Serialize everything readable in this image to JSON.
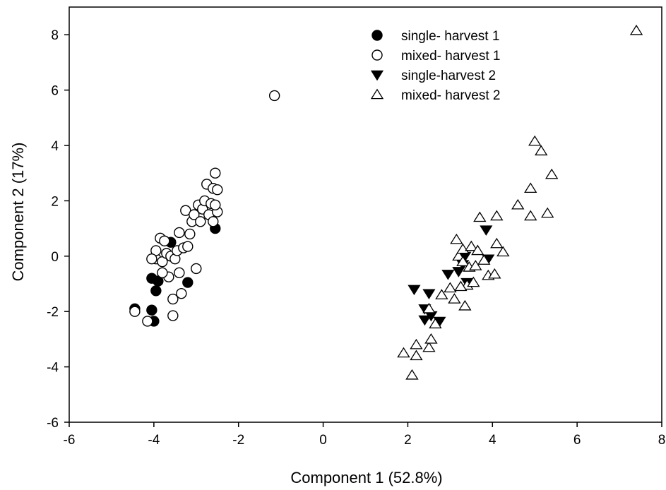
{
  "chart_data": {
    "type": "scatter",
    "title": "",
    "xlabel": "Component 1 (52.8%)",
    "ylabel": "Component 2 (17%)",
    "xlim": [
      -6,
      8
    ],
    "ylim": [
      -6,
      9
    ],
    "xticks": [
      -6,
      -4,
      -2,
      0,
      2,
      4,
      6,
      8
    ],
    "yticks": [
      -6,
      -4,
      -2,
      0,
      2,
      4,
      6,
      8
    ],
    "grid": false,
    "legend_position": "top-center",
    "series": [
      {
        "name": "single- harvest 1",
        "marker": "filled-circle",
        "points": [
          [
            -4.45,
            -1.9
          ],
          [
            -4.05,
            -0.8
          ],
          [
            -3.9,
            -0.9
          ],
          [
            -4.05,
            -1.95
          ],
          [
            -3.95,
            -1.25
          ],
          [
            -4.0,
            -2.35
          ],
          [
            -3.6,
            0.5
          ],
          [
            -3.2,
            -0.95
          ],
          [
            -2.55,
            1.0
          ]
        ]
      },
      {
        "name": "mixed- harvest 1",
        "marker": "open-circle",
        "points": [
          [
            -4.45,
            -2.0
          ],
          [
            -4.15,
            -2.35
          ],
          [
            -3.95,
            -0.1
          ],
          [
            -3.8,
            -0.2
          ],
          [
            -3.7,
            0.1
          ],
          [
            -3.6,
            0.0
          ],
          [
            -3.5,
            -0.1
          ],
          [
            -3.55,
            -1.55
          ],
          [
            -3.55,
            -2.15
          ],
          [
            -3.4,
            -0.6
          ],
          [
            -3.45,
            0.2
          ],
          [
            -3.35,
            -1.35
          ],
          [
            -3.3,
            0.3
          ],
          [
            -3.25,
            1.65
          ],
          [
            -3.2,
            0.35
          ],
          [
            -3.15,
            0.8
          ],
          [
            -3.1,
            1.25
          ],
          [
            -3.05,
            1.5
          ],
          [
            -3.0,
            -0.45
          ],
          [
            -2.95,
            1.85
          ],
          [
            -2.9,
            1.25
          ],
          [
            -2.85,
            1.7
          ],
          [
            -2.8,
            2.0
          ],
          [
            -2.75,
            2.6
          ],
          [
            -2.7,
            1.5
          ],
          [
            -2.65,
            1.9
          ],
          [
            -2.6,
            2.45
          ],
          [
            -2.55,
            3.0
          ],
          [
            -2.5,
            2.4
          ],
          [
            -2.5,
            1.6
          ],
          [
            -2.6,
            1.25
          ],
          [
            -2.55,
            1.85
          ],
          [
            -3.95,
            0.2
          ],
          [
            -3.85,
            0.65
          ],
          [
            -3.75,
            0.55
          ],
          [
            -4.05,
            -0.1
          ],
          [
            -3.65,
            -0.75
          ],
          [
            -3.4,
            0.85
          ],
          [
            -3.8,
            -0.6
          ],
          [
            -1.15,
            5.8
          ]
        ]
      },
      {
        "name": "single-harvest 2",
        "marker": "filled-triangle-down",
        "points": [
          [
            2.15,
            -1.2
          ],
          [
            2.4,
            -1.9
          ],
          [
            2.5,
            -1.35
          ],
          [
            2.4,
            -2.3
          ],
          [
            2.55,
            -2.15
          ],
          [
            2.75,
            -2.35
          ],
          [
            2.95,
            -0.65
          ],
          [
            3.2,
            -0.55
          ],
          [
            3.35,
            0.0
          ],
          [
            3.4,
            -0.95
          ],
          [
            3.85,
            0.95
          ],
          [
            3.9,
            -0.1
          ],
          [
            3.3,
            -0.3
          ]
        ]
      },
      {
        "name": "mixed- harvest 2",
        "marker": "open-triangle-up",
        "points": [
          [
            1.9,
            -3.5
          ],
          [
            2.1,
            -4.3
          ],
          [
            2.2,
            -3.6
          ],
          [
            2.2,
            -3.2
          ],
          [
            2.5,
            -3.3
          ],
          [
            2.55,
            -3.0
          ],
          [
            2.5,
            -1.9
          ],
          [
            2.65,
            -2.45
          ],
          [
            2.8,
            -1.4
          ],
          [
            3.1,
            -1.55
          ],
          [
            3.15,
            0.6
          ],
          [
            3.2,
            0.0
          ],
          [
            3.3,
            -0.2
          ],
          [
            3.3,
            0.25
          ],
          [
            3.35,
            -1.8
          ],
          [
            3.4,
            -1.05
          ],
          [
            3.45,
            -0.4
          ],
          [
            3.5,
            0.35
          ],
          [
            3.55,
            -0.95
          ],
          [
            3.6,
            -0.35
          ],
          [
            3.65,
            0.2
          ],
          [
            3.7,
            1.4
          ],
          [
            3.8,
            -0.15
          ],
          [
            3.9,
            -0.7
          ],
          [
            4.05,
            -0.65
          ],
          [
            4.1,
            1.45
          ],
          [
            4.1,
            0.45
          ],
          [
            4.25,
            0.15
          ],
          [
            4.6,
            1.85
          ],
          [
            4.9,
            2.45
          ],
          [
            4.9,
            1.45
          ],
          [
            5.0,
            4.15
          ],
          [
            5.15,
            3.8
          ],
          [
            5.3,
            1.55
          ],
          [
            5.4,
            2.95
          ],
          [
            7.4,
            8.15
          ],
          [
            3.25,
            -1.1
          ],
          [
            3.0,
            -1.15
          ]
        ]
      }
    ]
  }
}
